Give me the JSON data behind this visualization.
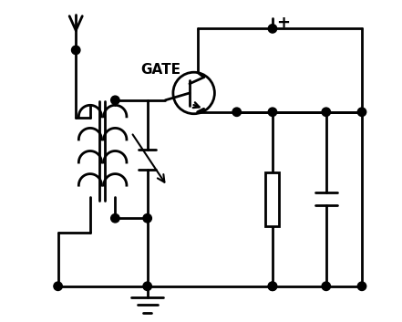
{
  "bg_color": "#ffffff",
  "line_color": "#000000",
  "lw": 2.0,
  "fig_width": 4.41,
  "fig_height": 3.53,
  "dpi": 100,
  "xlim": [
    0,
    11
  ],
  "ylim": [
    0,
    9
  ]
}
